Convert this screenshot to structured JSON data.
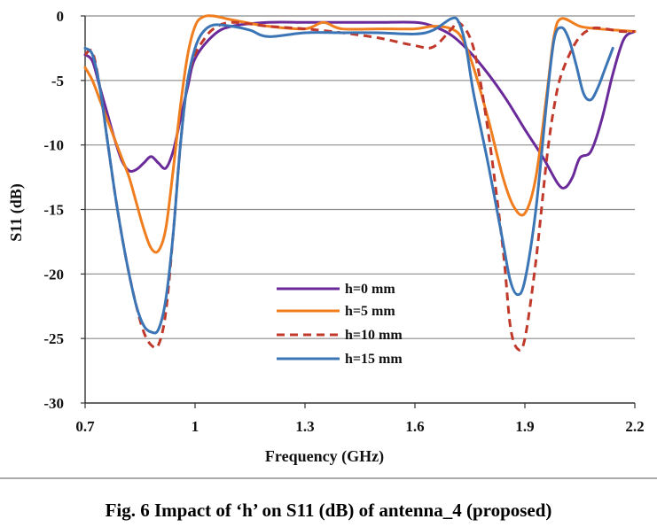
{
  "caption": "Fig. 6 Impact of ‘h’ on S11 (dB) of antenna_4 (proposed)",
  "chart_data": {
    "type": "line",
    "title": "",
    "xlabel": "Frequency (GHz)",
    "ylabel": "S11 (dB)",
    "xlim": [
      0.7,
      2.2
    ],
    "ylim": [
      -30,
      0
    ],
    "xticks": [
      0.7,
      1,
      1.3,
      1.6,
      1.9,
      2.2
    ],
    "xtick_labels": [
      "0.7",
      "1",
      "1.3",
      "1.6",
      "1.9",
      "2.2"
    ],
    "yticks": [
      0,
      -5,
      -10,
      -15,
      -20,
      -25,
      -30
    ],
    "ytick_labels": [
      "0",
      "-5",
      "-10",
      "-15",
      "-20",
      "-25",
      "-30"
    ],
    "grid": "horizontal",
    "legend_position": "bottom-center",
    "series": [
      {
        "name": "h=0 mm",
        "color": "#6a2a9a",
        "dash": "solid",
        "x": [
          0.7,
          0.72,
          0.74,
          0.76,
          0.78,
          0.8,
          0.82,
          0.84,
          0.86,
          0.88,
          0.9,
          0.92,
          0.94,
          0.96,
          0.98,
          1.0,
          1.05,
          1.1,
          1.2,
          1.3,
          1.4,
          1.5,
          1.6,
          1.65,
          1.7,
          1.75,
          1.8,
          1.85,
          1.9,
          1.95,
          1.99,
          2.01,
          2.03,
          2.05,
          2.08,
          2.11,
          2.14,
          2.17,
          2.2
        ],
        "y": [
          -3,
          -3.5,
          -5.5,
          -7.5,
          -9.5,
          -11.2,
          -12,
          -11.9,
          -11.4,
          -10.9,
          -11.4,
          -11.8,
          -10.5,
          -8,
          -5.5,
          -3.3,
          -1.5,
          -0.8,
          -0.5,
          -0.5,
          -0.5,
          -0.5,
          -0.5,
          -0.8,
          -1.5,
          -2.8,
          -4.5,
          -6.5,
          -8.8,
          -11,
          -13,
          -13.3,
          -12.5,
          -11,
          -10.5,
          -8,
          -4.5,
          -1.8,
          -1.2
        ]
      },
      {
        "name": "h=5 mm",
        "color": "#f07d1e",
        "dash": "solid",
        "x": [
          0.7,
          0.72,
          0.74,
          0.76,
          0.78,
          0.8,
          0.82,
          0.84,
          0.86,
          0.88,
          0.9,
          0.92,
          0.94,
          0.96,
          0.98,
          1.0,
          1.02,
          1.05,
          1.1,
          1.2,
          1.3,
          1.35,
          1.4,
          1.5,
          1.6,
          1.65,
          1.7,
          1.73,
          1.76,
          1.8,
          1.84,
          1.87,
          1.9,
          1.93,
          1.96,
          1.98,
          2.0,
          2.05,
          2.1,
          2.15,
          2.2
        ],
        "y": [
          -4,
          -5,
          -6.5,
          -8,
          -9.5,
          -11,
          -12.5,
          -14.5,
          -16.5,
          -18,
          -18.2,
          -16.5,
          -12,
          -7,
          -3,
          -0.8,
          -0.1,
          0,
          -0.3,
          -0.8,
          -1,
          -0.5,
          -1,
          -1,
          -1,
          -0.8,
          -1,
          -1.8,
          -4,
          -8,
          -12.5,
          -14.8,
          -15.3,
          -12.5,
          -6,
          -1.5,
          -0.2,
          -0.8,
          -1,
          -1.1,
          -1.2
        ]
      },
      {
        "name": "h=10 mm",
        "color": "#c0392b",
        "dash": "dashed",
        "x": [
          0.7,
          0.72,
          0.74,
          0.76,
          0.78,
          0.8,
          0.82,
          0.84,
          0.86,
          0.88,
          0.9,
          0.92,
          0.94,
          0.96,
          0.98,
          1.0,
          1.02,
          1.05,
          1.1,
          1.2,
          1.3,
          1.4,
          1.5,
          1.6,
          1.65,
          1.7,
          1.72,
          1.76,
          1.8,
          1.84,
          1.86,
          1.88,
          1.9,
          1.93,
          1.96,
          1.98,
          2.0,
          2.04,
          2.08,
          2.12,
          2.16,
          2.2
        ],
        "y": [
          -3,
          -2.8,
          -5.5,
          -9.5,
          -13.5,
          -17,
          -20,
          -22.5,
          -24.5,
          -25.5,
          -25.5,
          -23,
          -17,
          -10,
          -5,
          -3,
          -2,
          -1,
          -0.5,
          -0.8,
          -1,
          -1.3,
          -1.7,
          -2.3,
          -2.4,
          -1,
          -0.5,
          -2.5,
          -9,
          -18,
          -24,
          -25.8,
          -25,
          -19,
          -11,
          -7,
          -4.5,
          -2,
          -1,
          -1,
          -1.2,
          -1.2
        ]
      },
      {
        "name": "h=15 mm",
        "color": "#3b75b5",
        "dash": "solid",
        "x": [
          0.7,
          0.72,
          0.74,
          0.76,
          0.78,
          0.8,
          0.82,
          0.84,
          0.86,
          0.88,
          0.9,
          0.92,
          0.94,
          0.96,
          0.98,
          1.0,
          1.02,
          1.05,
          1.1,
          1.15,
          1.2,
          1.3,
          1.4,
          1.5,
          1.6,
          1.65,
          1.7,
          1.72,
          1.74,
          1.76,
          1.8,
          1.84,
          1.86,
          1.88,
          1.9,
          1.93,
          1.96,
          1.98,
          2.0,
          2.02,
          2.04,
          2.06,
          2.08,
          2.1,
          2.12,
          2.14
        ],
        "y": [
          -2.5,
          -3,
          -5.5,
          -9.5,
          -13.5,
          -17,
          -20,
          -22.5,
          -24,
          -24.5,
          -24.3,
          -22,
          -17,
          -10,
          -5,
          -2.5,
          -1.3,
          -0.7,
          -0.8,
          -1.1,
          -1.6,
          -1.3,
          -1.3,
          -1.3,
          -1.4,
          -1.1,
          -0.2,
          -0.5,
          -2.5,
          -6,
          -11.5,
          -17.5,
          -20.5,
          -21.6,
          -20.5,
          -15,
          -6.5,
          -1.8,
          -0.9,
          -1.8,
          -3.8,
          -6,
          -6.5,
          -5.5,
          -4,
          -2.5
        ]
      }
    ]
  }
}
